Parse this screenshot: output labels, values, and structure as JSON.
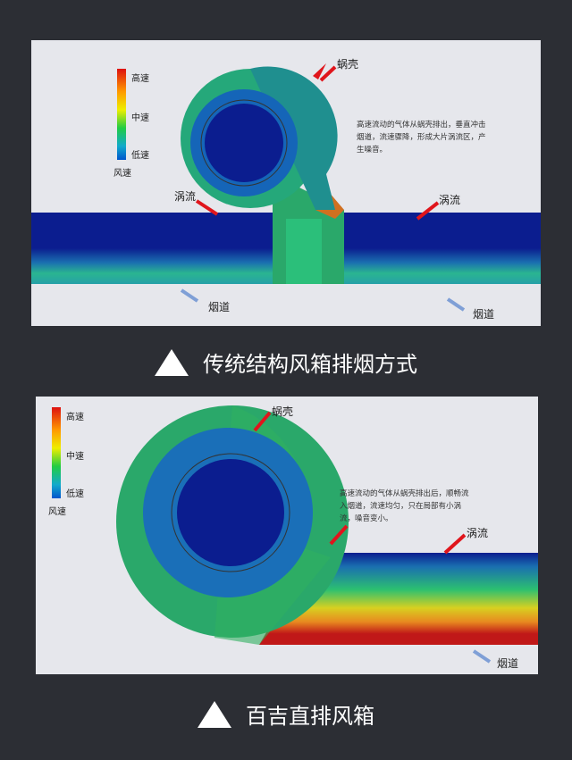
{
  "panels": [
    {
      "legend": {
        "high": "高速",
        "mid": "中速",
        "low": "低速",
        "title": "风速"
      },
      "labels": {
        "volute": "蜗壳",
        "vortex_left": "涡流",
        "vortex_right": "涡流",
        "flue_left": "烟道",
        "flue_right": "烟道"
      },
      "note": "高速流动的气体从蜗壳排出，垂直冲击烟道，流速骤降，形成大片涡流区，产生噪音。",
      "caption": "传统结构风箱排烟方式"
    },
    {
      "legend": {
        "high": "高速",
        "mid": "中速",
        "low": "低速",
        "title": "风速"
      },
      "labels": {
        "volute": "蜗壳",
        "vortex": "涡流",
        "flue": "烟道"
      },
      "note": "高速流动的气体从蜗壳排出后，顺畅流入烟道，流速均匀，只在局部有小涡流，噪音变小。",
      "caption": "百吉直排风箱"
    }
  ],
  "colors": {
    "background": "#2c2e34",
    "arrow": "#e0151c",
    "flue_arrow": "#7f9fd6",
    "low_speed": "#0a1a8c",
    "high_speed": "#c01818"
  }
}
